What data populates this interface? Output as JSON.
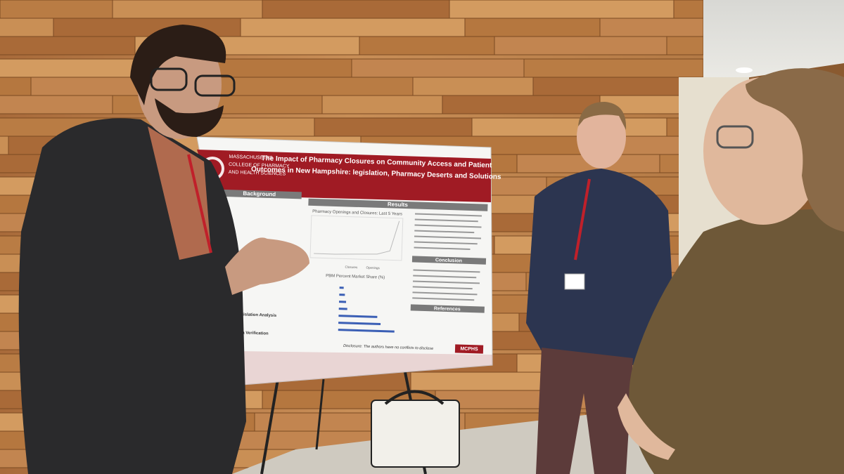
{
  "poster": {
    "institution": [
      "MASSACHUSETTS",
      "COLLEGE OF PHARMACY",
      "AND HEALTH SCIENCES"
    ],
    "title": [
      "The Impact of Pharmacy Closures on Community Access and Patient",
      "Outcomes in New Hampshire: legislation, Pharmacy Deserts and Solutions"
    ],
    "sections": {
      "background": "Background",
      "results": "Results",
      "conclusion": "Conclusion",
      "references": "References"
    },
    "left_subheads": [
      "Legislation Analysis",
      "Data Verification"
    ],
    "line_chart": {
      "title": "Pharmacy Openings and Closures: Last 5 Years",
      "legend": [
        "Closures",
        "Openings"
      ]
    },
    "bar_chart": {
      "title": "PBM Percent Market Share (%)"
    },
    "disclosure": "Disclosure: The authors have no conflicts to disclose",
    "logo": "MCPHS"
  }
}
